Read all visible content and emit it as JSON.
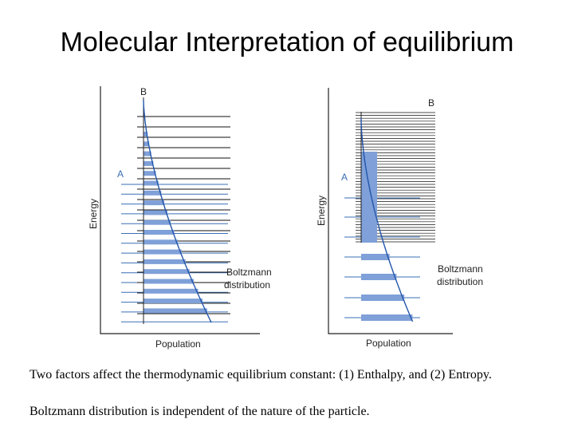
{
  "title": "Molecular Interpretation of equilibrium",
  "panels": [
    {
      "id": "left",
      "axis_y_label": "Energy",
      "axis_x_label": "Population",
      "species_a_label": "A",
      "species_b_label": "B",
      "distribution_label_line1": "Boltzmann",
      "distribution_label_line2": "distribution"
    },
    {
      "id": "right",
      "axis_y_label": "Energy",
      "axis_x_label": "Population",
      "species_a_label": "A",
      "species_b_label": "B",
      "distribution_label_line1": "Boltzmann",
      "distribution_label_line2": "distribution"
    }
  ],
  "colors": {
    "level_a": "#3a6fb5",
    "level_b": "#111111",
    "population_bar": "#7fa0d8",
    "axis": "#222222",
    "curve": "#2255aa"
  },
  "captions": [
    "Two factors affect the thermodynamic equilibrium constant: (1) Enthalpy, and (2) Entropy.",
    "Boltzmann distribution is independent of the nature of the particle."
  ]
}
